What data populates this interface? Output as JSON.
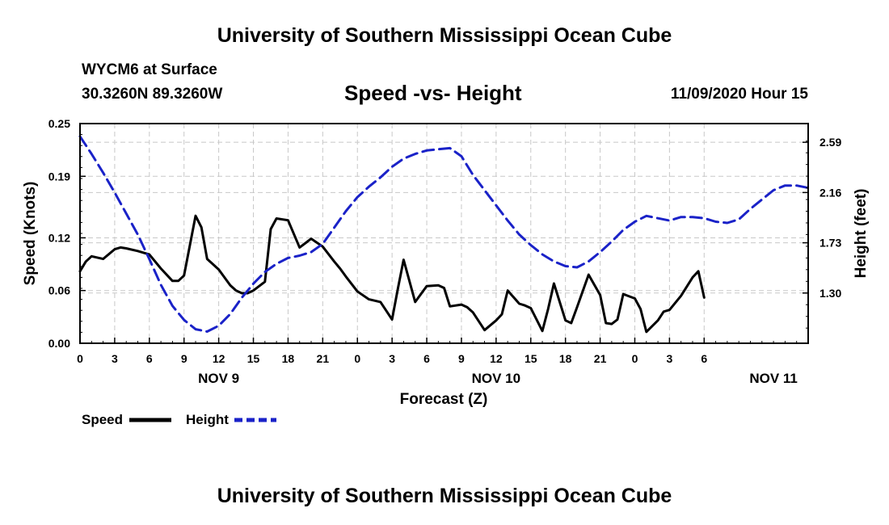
{
  "header": {
    "title": "University of Southern Mississippi Ocean Cube",
    "station": "WYCM6 at Surface",
    "coords": "30.3260N 89.3260W",
    "date": "11/09/2020 Hour 15"
  },
  "footer": {
    "title": "University of Southern Mississippi Ocean Cube"
  },
  "chart_data": {
    "type": "line",
    "title": "Speed -vs- Height",
    "xlabel": "Forecast (Z)",
    "ylabel": "Speed (Knots)",
    "y2label": "Height (feet)",
    "x_range_hours": [
      0,
      63
    ],
    "xticks": [
      {
        "h": 0,
        "label": "0"
      },
      {
        "h": 3,
        "label": "3"
      },
      {
        "h": 6,
        "label": "6"
      },
      {
        "h": 9,
        "label": "9"
      },
      {
        "h": 12,
        "label": "12"
      },
      {
        "h": 15,
        "label": "15"
      },
      {
        "h": 18,
        "label": "18"
      },
      {
        "h": 21,
        "label": "21"
      },
      {
        "h": 24,
        "label": "0"
      },
      {
        "h": 27,
        "label": "3"
      },
      {
        "h": 30,
        "label": "6"
      },
      {
        "h": 33,
        "label": "9"
      },
      {
        "h": 36,
        "label": "12"
      },
      {
        "h": 39,
        "label": "15"
      },
      {
        "h": 42,
        "label": "18"
      },
      {
        "h": 45,
        "label": "21"
      },
      {
        "h": 48,
        "label": "0"
      },
      {
        "h": 51,
        "label": "3"
      },
      {
        "h": 54,
        "label": "6"
      }
    ],
    "day_labels": [
      {
        "h": 12,
        "label": "NOV 9"
      },
      {
        "h": 36,
        "label": "NOV 10"
      },
      {
        "h": 60,
        "label": "NOV 11"
      }
    ],
    "y_left": {
      "ylim": [
        0,
        0.25
      ],
      "ticks": [
        "0.00",
        "0.06",
        "0.12",
        "0.19",
        "0.25"
      ]
    },
    "y_right": {
      "ylim": [
        0.87,
        2.75
      ],
      "ticks": [
        "1.30",
        "1.73",
        "2.16",
        "2.59"
      ]
    },
    "grid": true,
    "legend_position": "bottom-left",
    "series": [
      {
        "name": "Speed",
        "axis": "left",
        "color": "#000000",
        "dashed": false,
        "x": [
          0,
          0.5,
          1,
          2,
          3,
          3.5,
          4,
          5,
          6,
          7,
          8,
          8.5,
          9,
          10,
          10.5,
          11,
          12,
          13,
          13.5,
          14,
          14.5,
          15,
          16,
          16.5,
          17,
          18,
          19,
          19.5,
          20,
          21,
          22,
          22.5,
          23,
          24,
          25,
          26,
          27,
          27.5,
          28,
          29,
          30,
          31,
          31.5,
          32,
          33,
          33.5,
          34,
          35,
          36,
          36.5,
          37,
          38,
          38.5,
          39,
          40,
          40.5,
          41,
          42,
          42.5,
          43,
          44,
          45,
          45.5,
          46,
          46.5,
          47,
          48,
          48.5,
          49,
          50,
          50.5,
          51,
          52,
          53,
          53.5,
          54
        ],
        "values": [
          0.082,
          0.093,
          0.099,
          0.096,
          0.107,
          0.109,
          0.108,
          0.105,
          0.101,
          0.085,
          0.071,
          0.071,
          0.077,
          0.145,
          0.132,
          0.096,
          0.084,
          0.066,
          0.06,
          0.057,
          0.057,
          0.06,
          0.07,
          0.13,
          0.142,
          0.14,
          0.109,
          0.114,
          0.119,
          0.11,
          0.093,
          0.085,
          0.076,
          0.059,
          0.05,
          0.047,
          0.027,
          0.062,
          0.095,
          0.047,
          0.065,
          0.066,
          0.063,
          0.042,
          0.044,
          0.041,
          0.035,
          0.015,
          0.026,
          0.033,
          0.06,
          0.045,
          0.043,
          0.04,
          0.014,
          0.039,
          0.068,
          0.026,
          0.023,
          0.041,
          0.078,
          0.055,
          0.023,
          0.022,
          0.027,
          0.056,
          0.051,
          0.039,
          0.013,
          0.026,
          0.036,
          0.038,
          0.054,
          0.075,
          0.082,
          0.052
        ]
      },
      {
        "name": "Height",
        "axis": "right",
        "color": "#1a22c8",
        "dashed": true,
        "x": [
          0,
          1,
          2,
          3,
          4,
          5,
          6,
          7,
          8,
          9,
          10,
          11,
          12,
          13,
          14,
          15,
          16,
          17,
          18,
          19,
          20,
          21,
          22,
          23,
          24,
          25,
          26,
          27,
          28,
          29,
          30,
          31,
          32,
          33,
          34,
          35,
          36,
          37,
          38,
          39,
          40,
          41,
          42,
          43,
          44,
          45,
          46,
          47,
          48,
          49,
          50,
          51,
          52,
          53,
          54,
          55,
          56,
          57,
          58,
          59,
          60,
          61,
          62,
          63
        ],
        "values": [
          2.64,
          2.49,
          2.33,
          2.16,
          1.98,
          1.8,
          1.59,
          1.37,
          1.19,
          1.07,
          0.99,
          0.97,
          1.02,
          1.12,
          1.26,
          1.38,
          1.48,
          1.55,
          1.6,
          1.62,
          1.65,
          1.72,
          1.86,
          2.0,
          2.12,
          2.21,
          2.29,
          2.38,
          2.45,
          2.49,
          2.52,
          2.53,
          2.54,
          2.47,
          2.31,
          2.18,
          2.05,
          1.92,
          1.8,
          1.71,
          1.63,
          1.57,
          1.53,
          1.52,
          1.57,
          1.65,
          1.74,
          1.84,
          1.91,
          1.96,
          1.94,
          1.92,
          1.95,
          1.95,
          1.94,
          1.91,
          1.9,
          1.93,
          2.02,
          2.1,
          2.18,
          2.22,
          2.22,
          2.2
        ]
      }
    ]
  }
}
